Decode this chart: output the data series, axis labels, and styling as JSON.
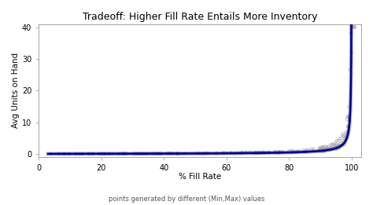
{
  "title": "Tradeoff: Higher Fill Rate Entails More Inventory",
  "xlabel": "% Fill Rate",
  "xlabel_sub": "points generated by different (Min,Max) values",
  "ylabel": "Avg Units on Hand",
  "xlim": [
    0,
    103
  ],
  "ylim": [
    -1,
    41
  ],
  "xticks": [
    0,
    20,
    40,
    60,
    80,
    100
  ],
  "yticks": [
    0,
    10,
    20,
    30,
    40
  ],
  "bg_color": "#ffffff",
  "scatter_color": "#aaaaaa",
  "scatter_edge": "#888888",
  "line_color": "#00008B",
  "title_fontsize": 9,
  "label_fontsize": 7.5,
  "tick_fontsize": 7,
  "sub_fontsize": 6
}
